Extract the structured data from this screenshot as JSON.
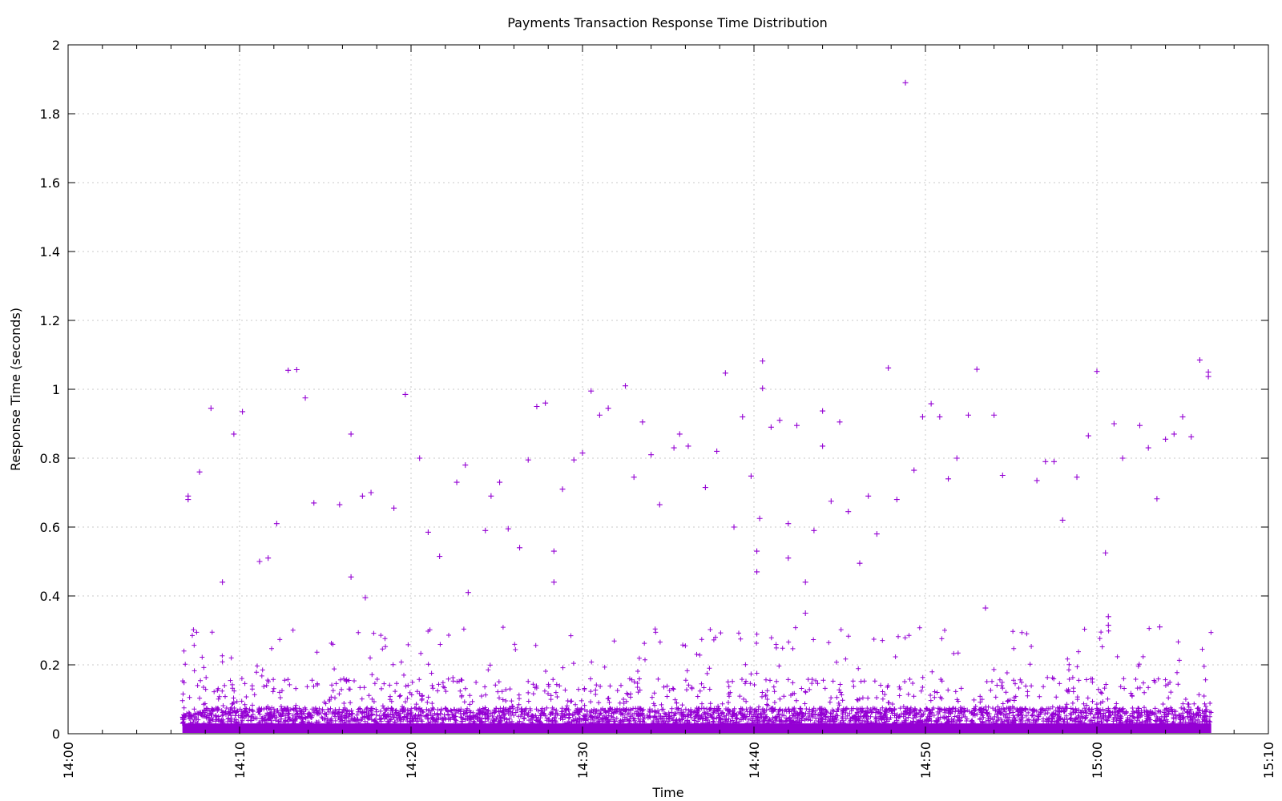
{
  "chart_data": {
    "type": "scatter",
    "title": "Payments Transaction Response Time Distribution",
    "xlabel": "Time",
    "ylabel": "Response Time (seconds)",
    "x_unit": "clock time (HH:MM)",
    "xlim": [
      "14:00",
      "15:10"
    ],
    "ylim": [
      0,
      2
    ],
    "x_ticks": [
      "14:00",
      "14:10",
      "14:20",
      "14:30",
      "14:40",
      "14:50",
      "15:00",
      "15:10"
    ],
    "y_ticks": [
      "0",
      "0.2",
      "0.4",
      "0.6",
      "0.8",
      "1",
      "1.2",
      "1.4",
      "1.6",
      "1.8",
      "2"
    ],
    "grid": true,
    "legend": "none",
    "marker": "plus",
    "color": "#9400d3",
    "data_x_range": [
      "14:06:40",
      "15:06:40"
    ],
    "series": [
      {
        "points": [
          [
            "14:07:00",
            0.69
          ],
          [
            "14:07:00",
            0.68
          ],
          [
            "14:07:40",
            0.76
          ],
          [
            "14:08:20",
            0.945
          ],
          [
            "14:09:00",
            0.44
          ],
          [
            "14:09:40",
            0.87
          ],
          [
            "14:10:10",
            0.935
          ],
          [
            "14:11:10",
            0.5
          ],
          [
            "14:11:40",
            0.51
          ],
          [
            "14:12:10",
            0.61
          ],
          [
            "14:12:50",
            1.055
          ],
          [
            "14:13:20",
            1.057
          ],
          [
            "14:13:50",
            0.975
          ],
          [
            "14:14:20",
            0.67
          ],
          [
            "14:15:50",
            0.665
          ],
          [
            "14:16:30",
            0.87
          ],
          [
            "14:16:30",
            0.455
          ],
          [
            "14:17:10",
            0.69
          ],
          [
            "14:17:20",
            0.395
          ],
          [
            "14:17:40",
            0.7
          ],
          [
            "14:19:00",
            0.655
          ],
          [
            "14:19:40",
            0.985
          ],
          [
            "14:20:30",
            0.8
          ],
          [
            "14:21:00",
            0.585
          ],
          [
            "14:21:40",
            0.515
          ],
          [
            "14:22:40",
            0.73
          ],
          [
            "14:23:10",
            0.78
          ],
          [
            "14:23:20",
            0.41
          ],
          [
            "14:24:20",
            0.59
          ],
          [
            "14:24:40",
            0.69
          ],
          [
            "14:25:10",
            0.73
          ],
          [
            "14:25:40",
            0.595
          ],
          [
            "14:26:20",
            0.54
          ],
          [
            "14:26:50",
            0.795
          ],
          [
            "14:27:20",
            0.95
          ],
          [
            "14:27:50",
            0.96
          ],
          [
            "14:28:20",
            0.53
          ],
          [
            "14:28:20",
            0.44
          ],
          [
            "14:28:50",
            0.71
          ],
          [
            "14:29:30",
            0.795
          ],
          [
            "14:30:00",
            0.815
          ],
          [
            "14:30:30",
            0.995
          ],
          [
            "14:31:00",
            0.925
          ],
          [
            "14:31:30",
            0.945
          ],
          [
            "14:32:30",
            1.01
          ],
          [
            "14:33:00",
            0.745
          ],
          [
            "14:33:30",
            0.905
          ],
          [
            "14:34:00",
            0.81
          ],
          [
            "14:34:30",
            0.665
          ],
          [
            "14:35:20",
            0.83
          ],
          [
            "14:35:40",
            0.87
          ],
          [
            "14:36:10",
            0.835
          ],
          [
            "14:37:10",
            0.715
          ],
          [
            "14:37:50",
            0.82
          ],
          [
            "14:38:20",
            1.047
          ],
          [
            "14:38:50",
            0.6
          ],
          [
            "14:39:20",
            0.92
          ],
          [
            "14:39:50",
            0.748
          ],
          [
            "14:40:10",
            0.47
          ],
          [
            "14:40:10",
            0.53
          ],
          [
            "14:40:20",
            0.625
          ],
          [
            "14:40:30",
            1.082
          ],
          [
            "14:40:30",
            1.003
          ],
          [
            "14:41:00",
            0.89
          ],
          [
            "14:41:30",
            0.91
          ],
          [
            "14:42:00",
            0.61
          ],
          [
            "14:42:00",
            0.51
          ],
          [
            "14:42:30",
            0.895
          ],
          [
            "14:43:00",
            0.44
          ],
          [
            "14:43:00",
            0.35
          ],
          [
            "14:43:30",
            0.59
          ],
          [
            "14:44:00",
            0.937
          ],
          [
            "14:44:00",
            0.835
          ],
          [
            "14:44:30",
            0.675
          ],
          [
            "14:45:00",
            0.905
          ],
          [
            "14:45:30",
            0.645
          ],
          [
            "14:46:10",
            0.495
          ],
          [
            "14:46:40",
            0.69
          ],
          [
            "14:47:10",
            0.58
          ],
          [
            "14:47:50",
            1.062
          ],
          [
            "14:48:20",
            0.68
          ],
          [
            "14:48:50",
            1.89
          ],
          [
            "14:49:20",
            0.765
          ],
          [
            "14:49:50",
            0.92
          ],
          [
            "14:50:20",
            0.958
          ],
          [
            "14:50:50",
            0.92
          ],
          [
            "14:51:20",
            0.74
          ],
          [
            "14:51:50",
            0.8
          ],
          [
            "14:52:30",
            0.925
          ],
          [
            "14:53:00",
            1.058
          ],
          [
            "14:53:30",
            0.365
          ],
          [
            "14:54:00",
            0.925
          ],
          [
            "14:54:30",
            0.75
          ],
          [
            "14:56:30",
            0.735
          ],
          [
            "14:57:00",
            0.79
          ],
          [
            "14:57:30",
            0.79
          ],
          [
            "14:58:00",
            0.62
          ],
          [
            "14:58:50",
            0.745
          ],
          [
            "14:59:30",
            0.865
          ],
          [
            "15:00:00",
            1.052
          ],
          [
            "15:00:30",
            0.525
          ],
          [
            "15:00:40",
            0.34
          ],
          [
            "15:00:40",
            0.315
          ],
          [
            "15:01:00",
            0.9
          ],
          [
            "15:01:30",
            0.8
          ],
          [
            "15:02:30",
            0.895
          ],
          [
            "15:03:00",
            0.83
          ],
          [
            "15:03:30",
            0.682
          ],
          [
            "15:03:40",
            0.31
          ],
          [
            "15:04:00",
            0.855
          ],
          [
            "15:04:30",
            0.87
          ],
          [
            "15:05:00",
            0.92
          ],
          [
            "15:05:30",
            0.862
          ],
          [
            "15:06:00",
            1.085
          ],
          [
            "15:06:30",
            1.05
          ],
          [
            "15:06:30",
            1.037
          ]
        ]
      }
    ]
  }
}
